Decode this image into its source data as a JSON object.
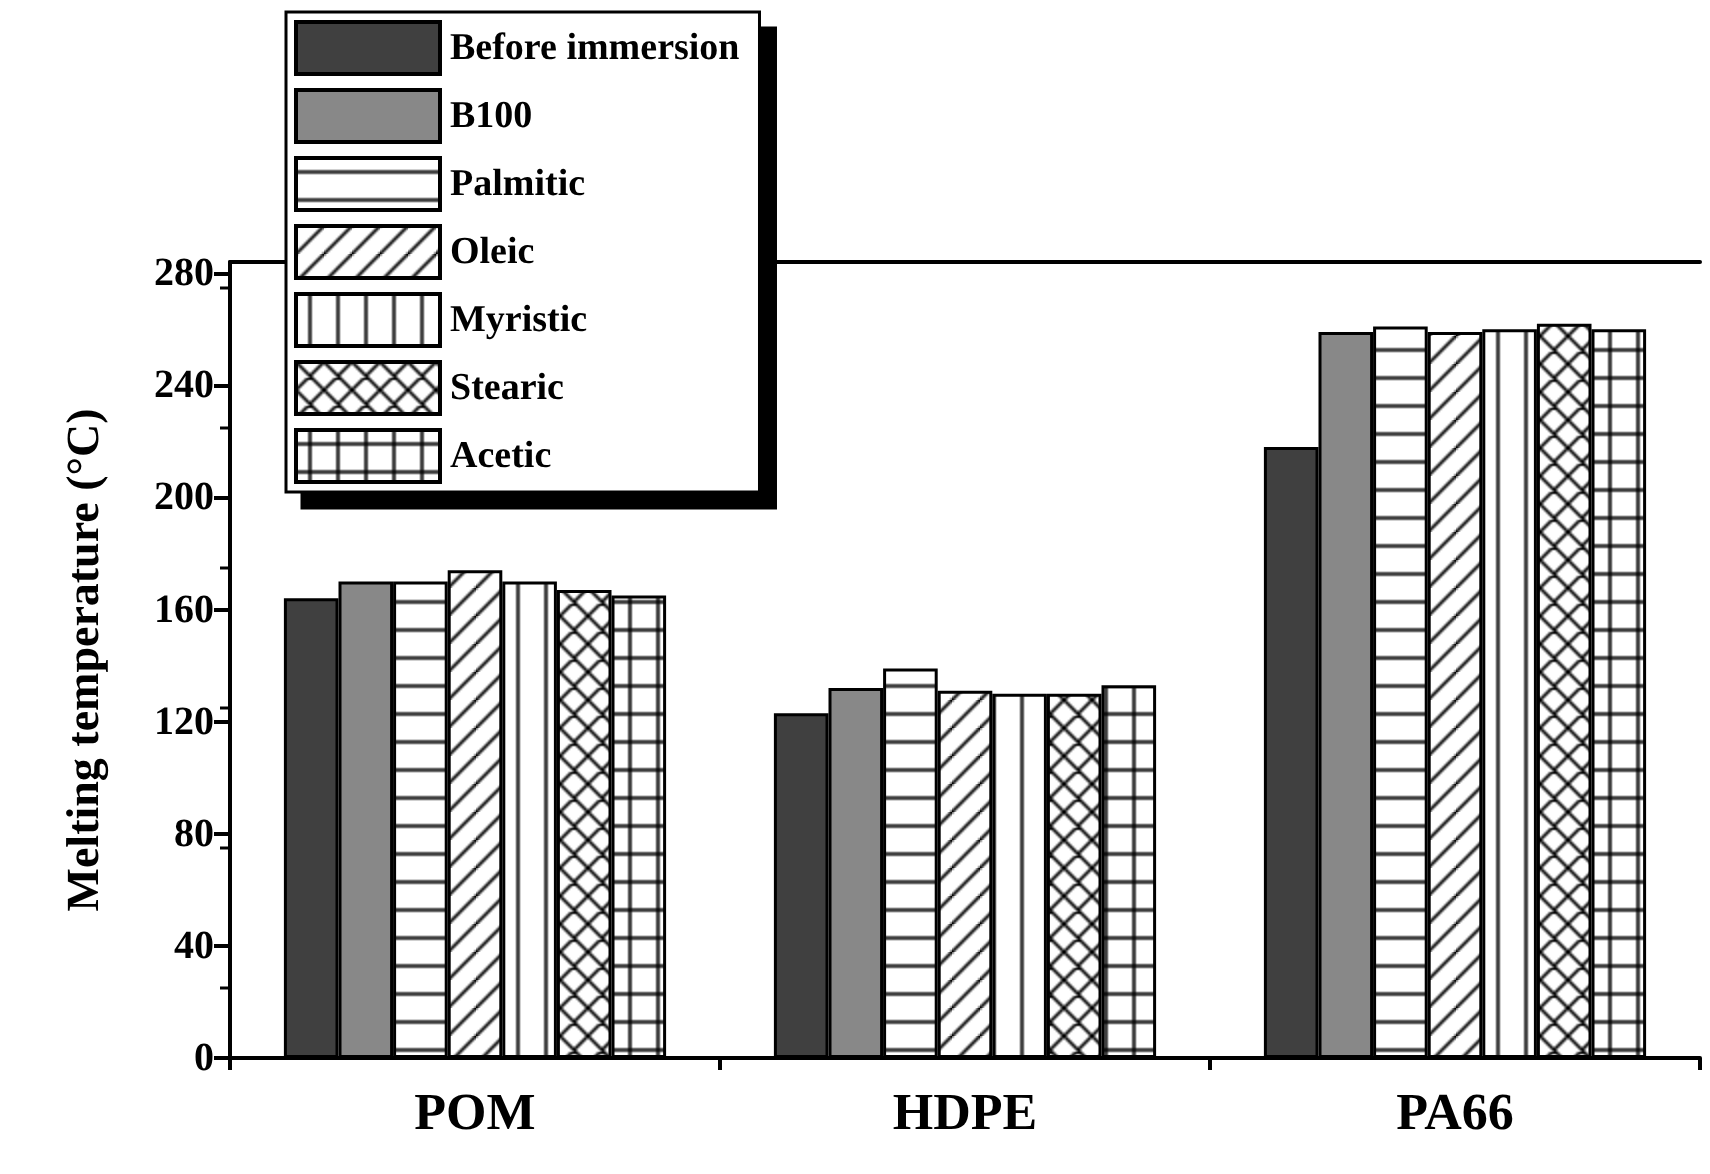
{
  "chart_data": {
    "type": "bar",
    "ylabel": "Melting temperature (°C)",
    "categories": [
      "POM",
      "HDPE",
      "PA66"
    ],
    "ylim": [
      0,
      284
    ],
    "yticks": [
      0,
      40,
      80,
      120,
      160,
      200,
      240,
      280
    ],
    "legend": "top left",
    "grid": false,
    "series": [
      {
        "name": "Before immersion",
        "color": "#404040",
        "values": [
          164,
          123,
          218
        ]
      },
      {
        "name": "B100",
        "color": "#888888",
        "values": [
          170,
          132,
          259
        ]
      },
      {
        "name": "Palmitic",
        "color": "#000000",
        "values": [
          170,
          139,
          261
        ]
      },
      {
        "name": "Oleic",
        "color": "#000000",
        "values": [
          174,
          131,
          259
        ]
      },
      {
        "name": "Myristic",
        "color": "#000000",
        "values": [
          170,
          130,
          260
        ]
      },
      {
        "name": "Stearic",
        "color": "#000000",
        "values": [
          167,
          130,
          262
        ]
      },
      {
        "name": "Acetic",
        "color": "#000000",
        "values": [
          165,
          133,
          260
        ]
      }
    ]
  }
}
